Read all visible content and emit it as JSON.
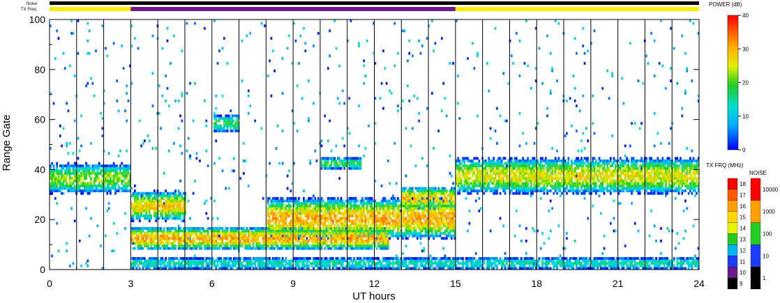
{
  "chart_data": {
    "type": "heatmap",
    "title": "",
    "xlabel": "UT hours",
    "ylabel": "Range Gate",
    "xlim": [
      0,
      24
    ],
    "ylim": [
      0,
      100
    ],
    "xticks": [
      "0",
      "3",
      "6",
      "9",
      "12",
      "15",
      "18",
      "21",
      "24"
    ],
    "yticks": [
      "0",
      "20",
      "40",
      "60",
      "80",
      "100"
    ],
    "minor_gridlines_hours": 1,
    "top_bar_labels": {
      "noise": "Noise",
      "txfreq": "TX Freq"
    },
    "tx_freq_segments": [
      {
        "start": 0,
        "end": 3,
        "band": "14-15 MHz",
        "color": "#ffee00"
      },
      {
        "start": 3,
        "end": 15,
        "band": "10-11 MHz",
        "color": "#6a1a8c"
      },
      {
        "start": 15,
        "end": 24,
        "band": "14-15 MHz",
        "color": "#ffee00"
      }
    ],
    "noise_bar_color": "#000000",
    "power_scale": {
      "label": "POWER (dB)",
      "ticks": [
        "40",
        "30",
        "20",
        "10",
        "0"
      ],
      "min": 0,
      "max": 40
    },
    "txfreq_scale": {
      "label": "TX FRQ (MHz)",
      "ticks": [
        "18",
        "17",
        "16",
        "15",
        "14",
        "13",
        "12",
        "11",
        "10",
        "9"
      ],
      "colors": [
        "#ff0000",
        "#ff5a00",
        "#ffa000",
        "#ffd800",
        "#e8f400",
        "#22cc22",
        "#00b4f0",
        "#1c3cff",
        "#6a1a8c",
        "#000000"
      ]
    },
    "noise_scale": {
      "label": "NOISE",
      "ticks": [
        "10000",
        "1000",
        "100",
        "10",
        "1"
      ],
      "colors": [
        "#ff0000",
        "#ffa000",
        "#22cc22",
        "#1c3cff",
        "#000000"
      ]
    },
    "echo_regions": [
      {
        "t0": 0,
        "t1": 3,
        "center_gate": 36,
        "half_width": 5,
        "peak_db": 22
      },
      {
        "t0": 3,
        "t1": 5,
        "center_gate": 25,
        "half_width": 5,
        "peak_db": 28
      },
      {
        "t0": 3,
        "t1": 12.5,
        "center_gate": 12,
        "half_width": 4,
        "peak_db": 30
      },
      {
        "t0": 8,
        "t1": 15,
        "center_gate": 20,
        "half_width": 7,
        "peak_db": 30
      },
      {
        "t0": 10,
        "t1": 11.5,
        "center_gate": 42,
        "half_width": 2,
        "peak_db": 18
      },
      {
        "t0": 6,
        "t1": 7,
        "center_gate": 58,
        "half_width": 3,
        "peak_db": 18
      },
      {
        "t0": 13,
        "t1": 15,
        "center_gate": 28,
        "half_width": 4,
        "peak_db": 28
      },
      {
        "t0": 15,
        "t1": 24,
        "center_gate": 37,
        "half_width": 6,
        "peak_db": 26
      },
      {
        "t0": 3,
        "t1": 24,
        "center_gate": 2,
        "half_width": 2,
        "peak_db": 14
      }
    ]
  }
}
